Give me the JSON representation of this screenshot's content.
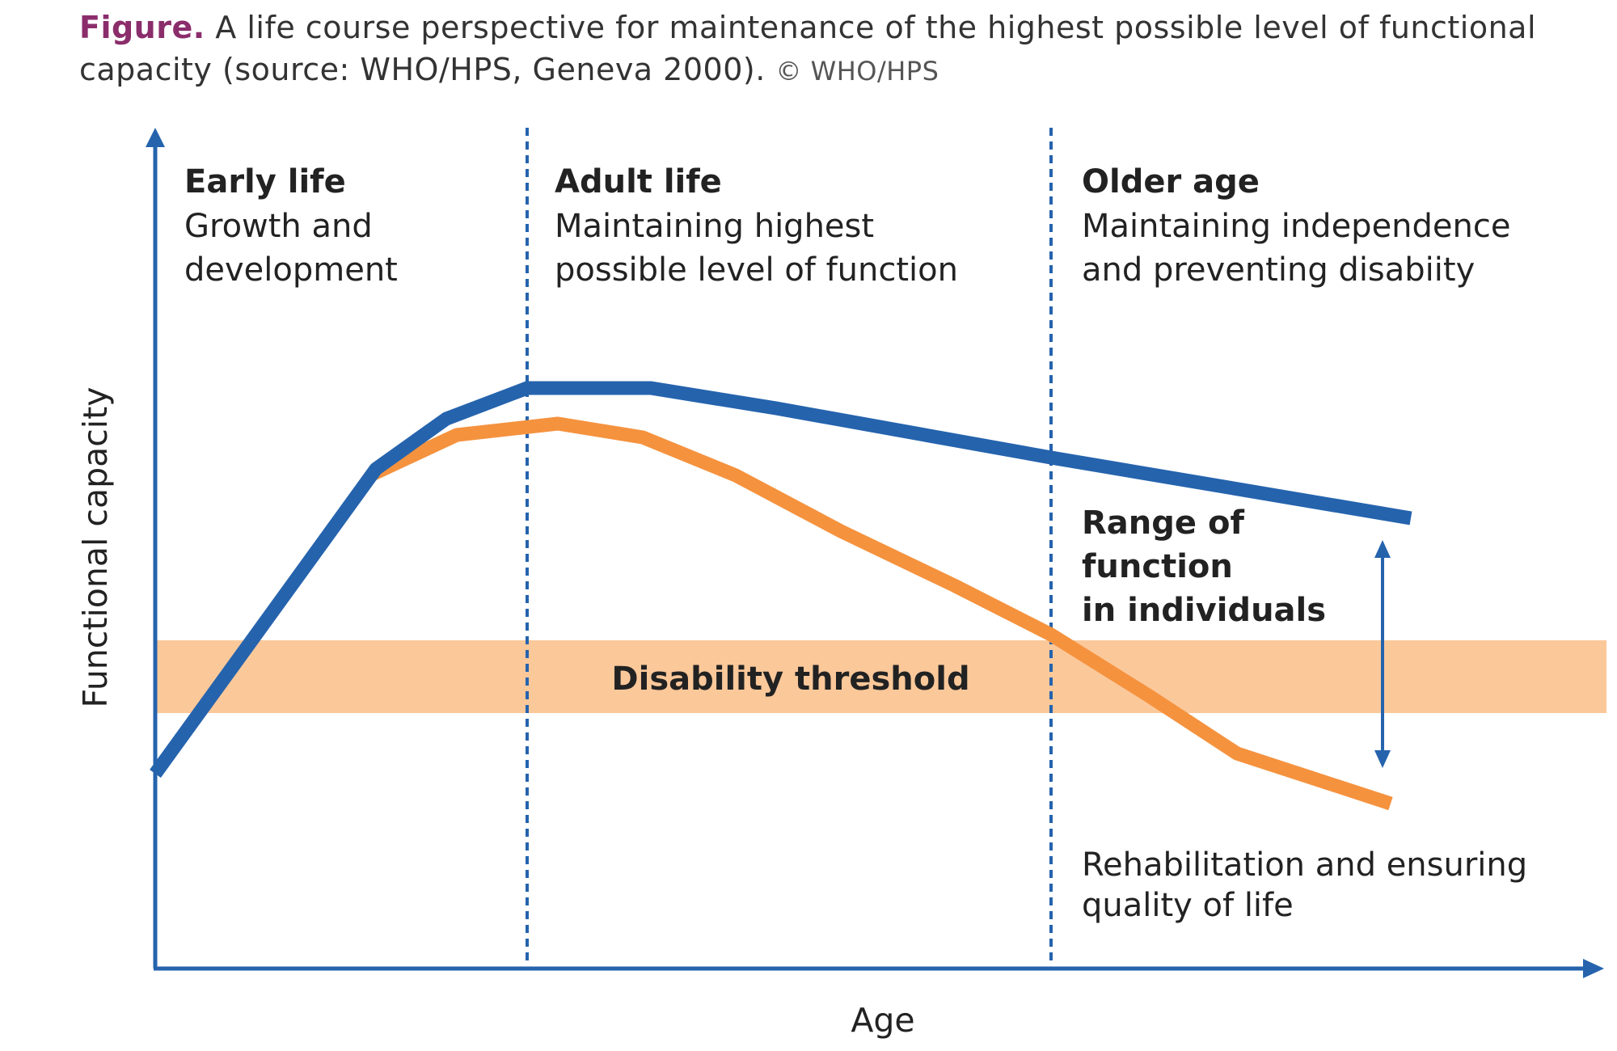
{
  "caption": {
    "figure_label": "Figure.",
    "text": "A life course perspective for maintenance of the highest possible level of functional capacity (source: WHO/HPS, Geneva 2000).",
    "copyright": "© WHO/HPS"
  },
  "axes": {
    "y_label": "Functional capacity",
    "x_label": "Age"
  },
  "phases": [
    {
      "heading": "Early life",
      "line1": "Growth and",
      "line2": "development"
    },
    {
      "heading": "Adult life",
      "line1": "Maintaining highest",
      "line2": "possible level of function"
    },
    {
      "heading": "Older age",
      "line1": "Maintaining independence",
      "line2": "and preventing disabiity"
    }
  ],
  "threshold": {
    "label": "Disability threshold"
  },
  "range": {
    "line1": "Range of",
    "line2": "function",
    "line3": "in individuals"
  },
  "rehab": {
    "line1": "Rehabilitation and ensuring",
    "line2": "quality of life"
  },
  "colors": {
    "blue": "#2563ad",
    "orange": "#f5923e",
    "band": "#fbc89a",
    "caption_accent": "#8b2d6b"
  }
}
